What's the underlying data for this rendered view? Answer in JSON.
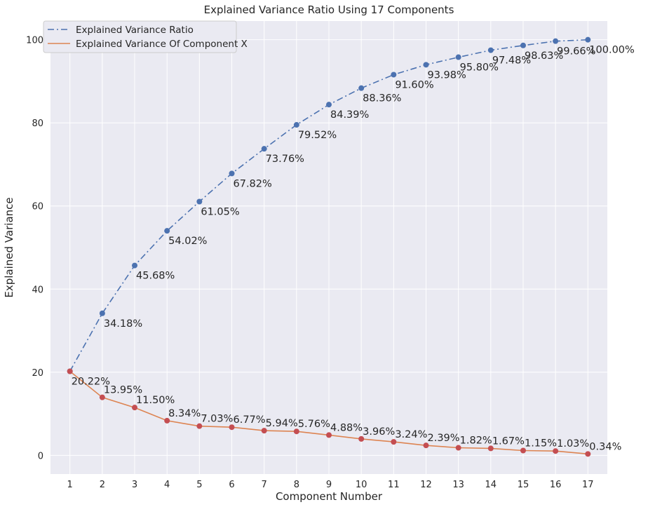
{
  "chart_data": {
    "type": "line",
    "title": "Explained Variance Ratio Using 17 Components",
    "xlabel": "Component Number",
    "ylabel": "Explained Variance",
    "x": [
      1,
      2,
      3,
      4,
      5,
      6,
      7,
      8,
      9,
      10,
      11,
      12,
      13,
      14,
      15,
      16,
      17
    ],
    "xlim": [
      0.4,
      17.6
    ],
    "ylim": [
      -4.5,
      104.5
    ],
    "yticks": [
      0,
      20,
      40,
      60,
      80,
      100
    ],
    "grid": true,
    "legend_position": "top-left",
    "series": [
      {
        "name": "Explained Variance Ratio",
        "color": "#4c72b0",
        "marker_color": "#4c72b0",
        "line_style": "dash-dot",
        "values": [
          20.22,
          34.18,
          45.68,
          54.02,
          61.05,
          67.82,
          73.76,
          79.52,
          84.39,
          88.36,
          91.6,
          93.98,
          95.8,
          97.48,
          98.63,
          99.66,
          100.0
        ],
        "labels": [
          "20.22%",
          "34.18%",
          "45.68%",
          "54.02%",
          "61.05%",
          "67.82%",
          "73.76%",
          "79.52%",
          "84.39%",
          "88.36%",
          "91.60%",
          "93.98%",
          "95.80%",
          "97.48%",
          "98.63%",
          "99.66%",
          "100.00%"
        ],
        "label_placement": "below"
      },
      {
        "name": "Explained Variance Of Component X",
        "color": "#dd8452",
        "marker_color": "#c44e52",
        "line_style": "solid",
        "values": [
          20.22,
          13.95,
          11.5,
          8.34,
          7.03,
          6.77,
          5.94,
          5.76,
          4.88,
          3.96,
          3.24,
          2.39,
          1.82,
          1.67,
          1.15,
          1.03,
          0.34
        ],
        "labels": [
          "",
          "13.95%",
          "11.50%",
          "8.34%",
          "7.03%",
          "6.77%",
          "5.94%",
          "5.76%",
          "4.88%",
          "3.96%",
          "3.24%",
          "2.39%",
          "1.82%",
          "1.67%",
          "1.15%",
          "1.03%",
          "0.34%"
        ],
        "label_placement": "above"
      }
    ]
  }
}
